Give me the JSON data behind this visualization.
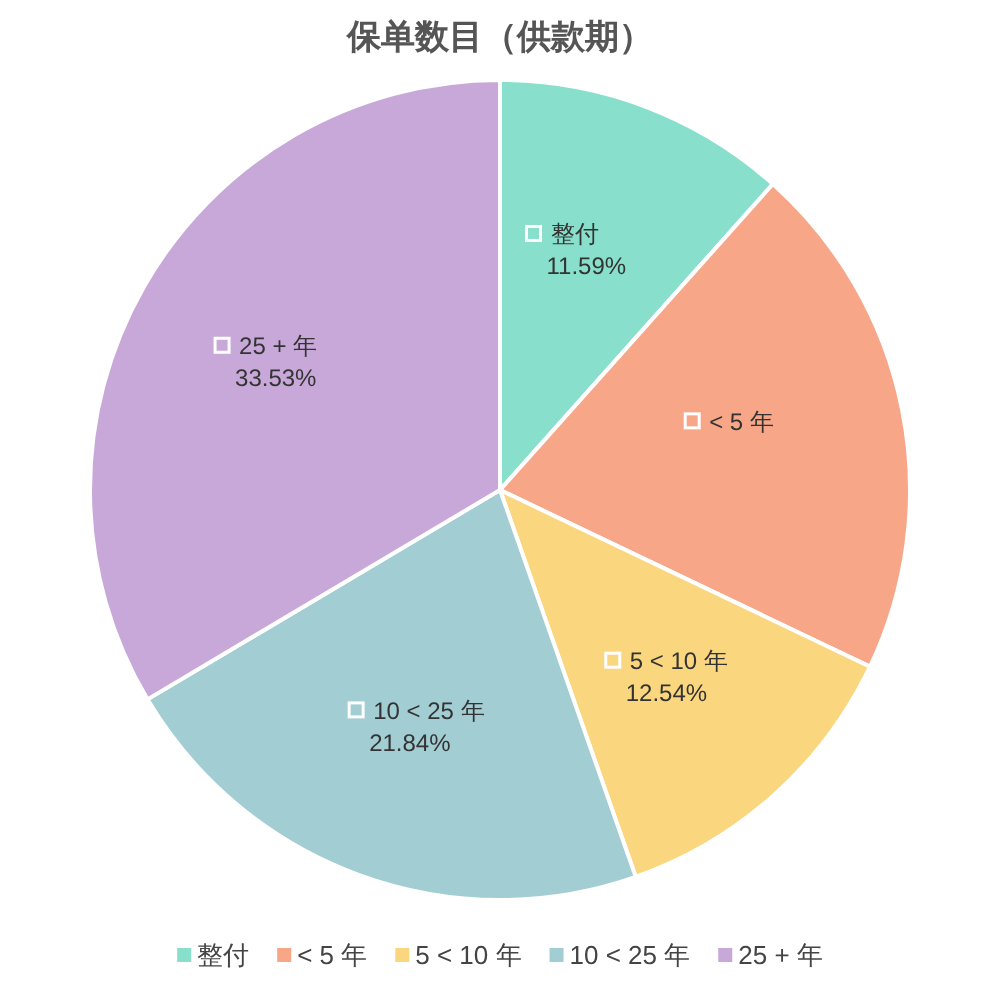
{
  "chart_data": {
    "type": "pie",
    "title": "保单数目（供款期）",
    "categories": [
      "整付",
      "< 5 年",
      "5 < 10 年",
      "10 < 25 年",
      "25 + 年"
    ],
    "values": [
      11.59,
      20.5,
      12.54,
      21.84,
      33.53
    ],
    "value_labels": [
      "11.59%",
      null,
      "12.54%",
      "21.84%",
      "33.53%"
    ],
    "colors": [
      "#88e0cc",
      "#f7a788",
      "#fad77f",
      "#a2cdd3",
      "#c8a8d8"
    ],
    "legend": "bottom"
  }
}
